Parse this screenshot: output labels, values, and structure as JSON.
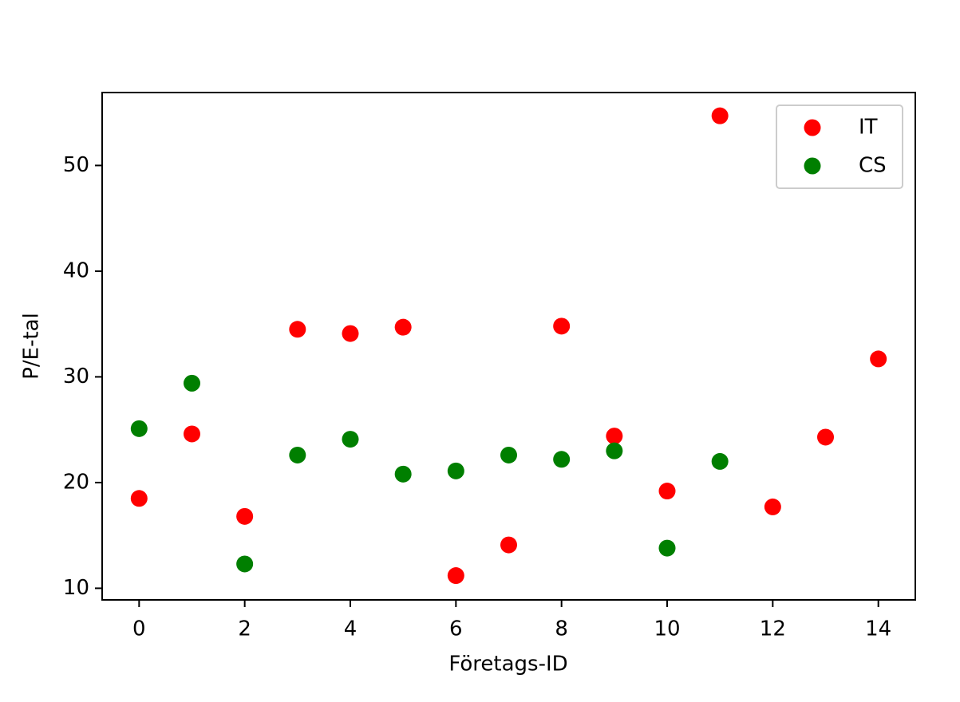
{
  "chart_data": {
    "type": "scatter",
    "x_label": "Företags-ID",
    "y_label": "P/E-tal",
    "series": [
      {
        "name": "IT",
        "color": "#ff0000",
        "x": [
          0,
          1,
          2,
          3,
          4,
          5,
          6,
          7,
          8,
          9,
          10,
          11,
          12,
          13,
          14
        ],
        "values": [
          18.5,
          24.6,
          16.8,
          34.5,
          34.1,
          34.7,
          11.2,
          14.1,
          34.8,
          24.4,
          19.2,
          54.7,
          17.7,
          24.3,
          31.7
        ]
      },
      {
        "name": "CS",
        "color": "#007f00",
        "x": [
          0,
          1,
          2,
          3,
          4,
          5,
          6,
          7,
          8,
          9,
          10,
          11
        ],
        "values": [
          25.1,
          29.4,
          12.3,
          22.6,
          24.1,
          20.8,
          21.1,
          22.6,
          22.2,
          23.0,
          13.8,
          22.0
        ]
      }
    ],
    "xlim": [
      -0.7,
      14.7
    ],
    "xticks": [
      0,
      2,
      4,
      6,
      8,
      10,
      12,
      14
    ],
    "ylim": [
      8.9,
      56.9
    ],
    "yticks": [
      10,
      20,
      30,
      40,
      50
    ],
    "legend": "upper right"
  }
}
